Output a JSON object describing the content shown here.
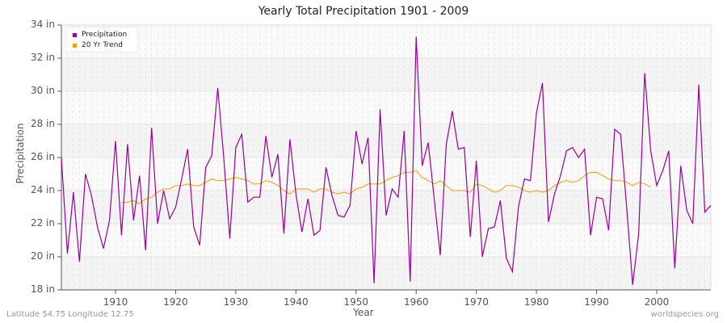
{
  "title": "Yearly Total Precipitation 1901 - 2009",
  "footer": {
    "left": "Latitude 54.75 Longitude 12.75",
    "right": "worldspecies.org"
  },
  "legend": [
    {
      "label": "Precipitation",
      "color": "#990099"
    },
    {
      "label": "20 Yr Trend",
      "color": "#ff9900"
    }
  ],
  "axes": {
    "ylabel": "Precipitation",
    "xlabel": "Year",
    "yticks": [
      "18 in",
      "20 in",
      "22 in",
      "24 in",
      "26 in",
      "28 in",
      "30 in",
      "32 in",
      "34 in"
    ],
    "xticks": [
      "1910",
      "1920",
      "1930",
      "1940",
      "1950",
      "1960",
      "1970",
      "1980",
      "1990",
      "2000"
    ]
  },
  "chart_data": {
    "type": "line",
    "title": "Yearly Total Precipitation 1901 - 2009",
    "xlabel": "Year",
    "ylabel": "Precipitation",
    "ylim": [
      18,
      34
    ],
    "xlim": [
      1901,
      2009
    ],
    "units": "in",
    "grid": true,
    "legend_position": "top-left",
    "x": [
      1901,
      1902,
      1903,
      1904,
      1905,
      1906,
      1907,
      1908,
      1909,
      1910,
      1911,
      1912,
      1913,
      1914,
      1915,
      1916,
      1917,
      1918,
      1919,
      1920,
      1921,
      1922,
      1923,
      1924,
      1925,
      1926,
      1927,
      1928,
      1929,
      1930,
      1931,
      1932,
      1933,
      1934,
      1935,
      1936,
      1937,
      1938,
      1939,
      1940,
      1941,
      1942,
      1943,
      1944,
      1945,
      1946,
      1947,
      1948,
      1949,
      1950,
      1951,
      1952,
      1953,
      1954,
      1955,
      1956,
      1957,
      1958,
      1959,
      1960,
      1961,
      1962,
      1963,
      1964,
      1965,
      1966,
      1967,
      1968,
      1969,
      1970,
      1971,
      1972,
      1973,
      1974,
      1975,
      1976,
      1977,
      1978,
      1979,
      1980,
      1981,
      1982,
      1983,
      1984,
      1985,
      1986,
      1987,
      1988,
      1989,
      1990,
      1991,
      1992,
      1993,
      1994,
      1995,
      1996,
      1997,
      1998,
      1999,
      2000,
      2001,
      2002,
      2003,
      2004,
      2005,
      2006,
      2007,
      2008,
      2009
    ],
    "series": [
      {
        "name": "Precipitation",
        "color": "#990099",
        "values": [
          26.0,
          20.2,
          23.9,
          19.7,
          25.0,
          23.7,
          21.8,
          20.5,
          22.2,
          27.0,
          21.3,
          26.8,
          22.2,
          24.9,
          20.4,
          27.8,
          22.0,
          24.0,
          22.3,
          23.0,
          24.7,
          26.5,
          21.8,
          20.7,
          25.4,
          26.1,
          30.2,
          26.0,
          21.1,
          26.6,
          27.4,
          23.3,
          23.6,
          23.6,
          27.3,
          24.8,
          26.2,
          21.4,
          27.1,
          23.8,
          21.5,
          23.5,
          21.3,
          21.6,
          25.4,
          23.7,
          22.5,
          22.4,
          23.1,
          27.6,
          25.6,
          27.2,
          18.4,
          28.9,
          22.5,
          24.1,
          23.6,
          27.6,
          18.5,
          33.3,
          25.5,
          26.9,
          23.5,
          20.1,
          26.8,
          28.8,
          26.5,
          26.6,
          21.2,
          25.8,
          20.0,
          21.7,
          21.8,
          23.4,
          19.9,
          19.1,
          23.0,
          24.7,
          24.6,
          28.7,
          30.5,
          22.1,
          23.8,
          24.9,
          26.4,
          26.6,
          26.0,
          26.5,
          21.3,
          23.6,
          23.5,
          21.6,
          27.7,
          27.4,
          23.0,
          18.3,
          21.4,
          31.1,
          26.4,
          24.3,
          25.2,
          26.4,
          19.3,
          25.5,
          22.8,
          22.0,
          30.4,
          22.7,
          23.1
        ]
      },
      {
        "name": "20 Yr Trend",
        "color": "#ff9900",
        "start_year": 1911,
        "values": [
          23.3,
          23.3,
          23.4,
          23.2,
          23.5,
          23.6,
          23.9,
          24.1,
          24.1,
          24.3,
          24.3,
          24.4,
          24.3,
          24.3,
          24.5,
          24.7,
          24.6,
          24.6,
          24.7,
          24.8,
          24.7,
          24.6,
          24.4,
          24.4,
          24.6,
          24.5,
          24.3,
          24.0,
          23.8,
          24.1,
          24.1,
          24.1,
          23.9,
          24.1,
          24.1,
          23.9,
          23.8,
          23.9,
          23.8,
          24.1,
          24.2,
          24.4,
          24.4,
          24.4,
          24.6,
          24.8,
          24.9,
          25.1,
          25.1,
          25.2,
          24.8,
          24.6,
          24.4,
          24.6,
          24.3,
          24.0,
          24.0,
          24.0,
          23.9,
          24.4,
          24.3,
          24.1,
          23.9,
          24.0,
          24.3,
          24.3,
          24.2,
          24.0,
          23.9,
          24.0,
          23.9,
          24.0,
          24.3,
          24.5,
          24.6,
          24.5,
          24.6,
          24.9,
          25.1,
          25.1,
          24.9,
          24.7,
          24.6,
          24.6,
          24.5,
          24.3,
          24.5,
          24.4,
          24.2
        ]
      }
    ]
  }
}
